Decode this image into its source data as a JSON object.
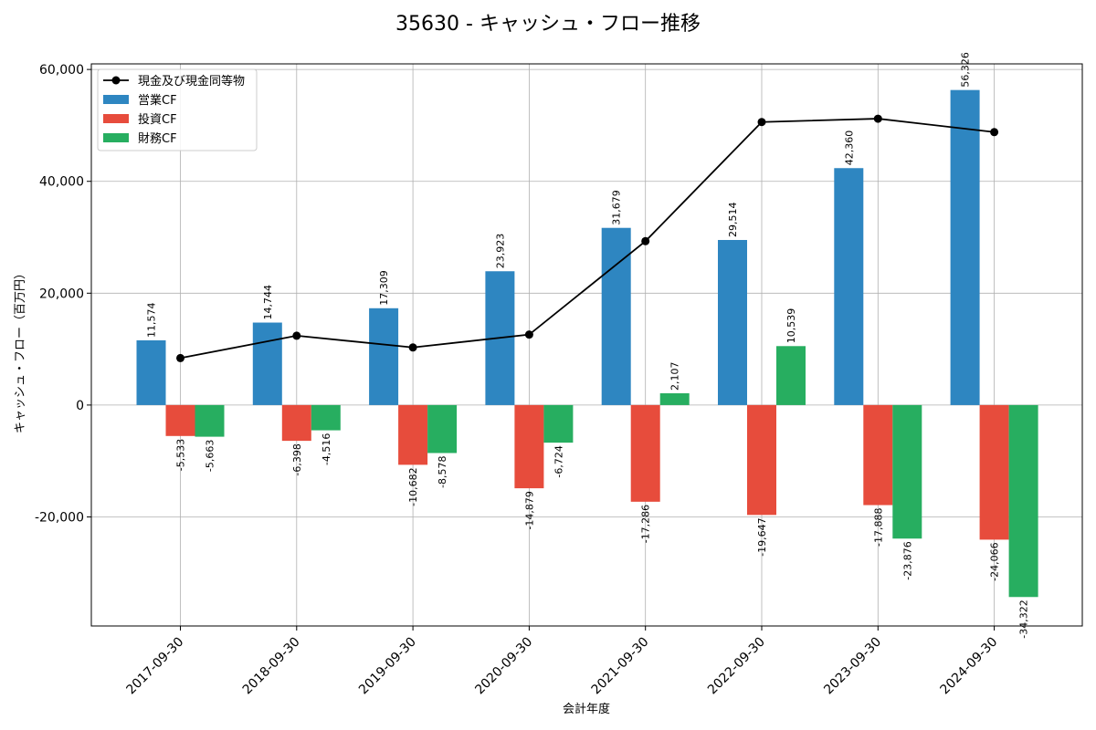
{
  "chart_data": {
    "type": "bar",
    "title": "35630 - キャッシュ・フロー推移",
    "xlabel": "会計年度",
    "ylabel": "キャッシュ・フロー（百万円）",
    "categories": [
      "2017-09-30",
      "2018-09-30",
      "2019-09-30",
      "2020-09-30",
      "2021-09-30",
      "2022-09-30",
      "2023-09-30",
      "2024-09-30"
    ],
    "ylim": [
      -39500,
      61000
    ],
    "yticks": [
      -20000,
      0,
      20000,
      40000,
      60000
    ],
    "ytick_labels": [
      "-20,000",
      "0",
      "20,000",
      "40,000",
      "60,000"
    ],
    "grid": true,
    "legend_position": "top-left",
    "series": [
      {
        "name": "営業CF",
        "kind": "bar",
        "color": "#2e86c1",
        "values": [
          11574,
          14744,
          17309,
          23923,
          31679,
          29514,
          42360,
          56326
        ],
        "labels": [
          "11,574",
          "14,744",
          "17,309",
          "23,923",
          "31,679",
          "29,514",
          "42,360",
          "56,326"
        ]
      },
      {
        "name": "投資CF",
        "kind": "bar",
        "color": "#e74c3c",
        "values": [
          -5533,
          -6398,
          -10682,
          -14879,
          -17286,
          -19647,
          -17888,
          -24066
        ],
        "labels": [
          "-5,533",
          "-6,398",
          "-10,682",
          "-14,879",
          "-17,286",
          "-19,647",
          "-17,888",
          "-24,066"
        ]
      },
      {
        "name": "財務CF",
        "kind": "bar",
        "color": "#27ae60",
        "values": [
          -5663,
          -4516,
          -8578,
          -6724,
          2107,
          10539,
          -23876,
          -34322
        ],
        "labels": [
          "-5,663",
          "-4,516",
          "-8,578",
          "-6,724",
          "2,107",
          "10,539",
          "-23,876",
          "-34,322"
        ]
      }
    ],
    "line": {
      "name": "現金及び現金同等物",
      "kind": "line",
      "color": "#000000",
      "values": [
        8400,
        12400,
        10300,
        12600,
        29300,
        50600,
        51200,
        48800
      ]
    }
  }
}
